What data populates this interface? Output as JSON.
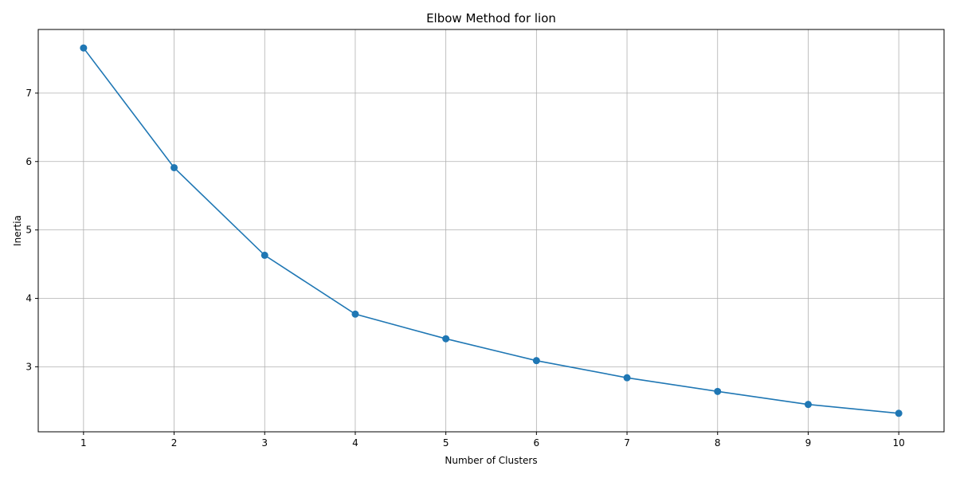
{
  "chart_data": {
    "type": "line",
    "title": "Elbow Method for lion",
    "xlabel": "Number of Clusters",
    "ylabel": "Inertia",
    "x": [
      1,
      2,
      3,
      4,
      5,
      6,
      7,
      8,
      9,
      10
    ],
    "series": [
      {
        "values": [
          7.66,
          5.91,
          4.63,
          3.77,
          3.41,
          3.09,
          2.84,
          2.64,
          2.45,
          2.32
        ]
      }
    ],
    "xticks": [
      "1",
      "2",
      "3",
      "4",
      "5",
      "6",
      "7",
      "8",
      "9",
      "10"
    ],
    "yticks": [
      "3",
      "4",
      "5",
      "6",
      "7"
    ],
    "xlim": [
      0.5,
      10.5
    ],
    "ylim": [
      2.05,
      7.93
    ],
    "grid": true,
    "marker": "circle",
    "colors": {
      "line": "#1f77b4",
      "grid": "#b0b0b0",
      "axis": "#000000"
    }
  }
}
